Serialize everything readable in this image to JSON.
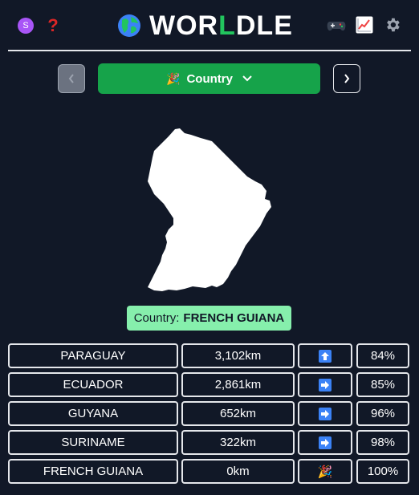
{
  "header": {
    "support_letter": "S",
    "help_symbol": "?",
    "title_prefix": "WOR",
    "title_highlight": "L",
    "title_suffix": "DLE",
    "icons": [
      "support-icon",
      "help-icon",
      "globe-icon",
      "games-icon",
      "stats-icon",
      "gear-icon"
    ]
  },
  "mode": {
    "label": "Country",
    "emoji": "🎉"
  },
  "answer": {
    "prefix": "Country:",
    "name": "FRENCH GUIANA"
  },
  "guesses": [
    {
      "name": "PARAGUAY",
      "distance": "3,102km",
      "direction": "up",
      "percent": "84%"
    },
    {
      "name": "ECUADOR",
      "distance": "2,861km",
      "direction": "right",
      "percent": "85%"
    },
    {
      "name": "GUYANA",
      "distance": "652km",
      "direction": "right",
      "percent": "96%"
    },
    {
      "name": "SURINAME",
      "distance": "322km",
      "direction": "right",
      "percent": "98%"
    },
    {
      "name": "FRENCH GUIANA",
      "distance": "0km",
      "direction": "win",
      "percent": "100%"
    }
  ],
  "colors": {
    "background": "#111827",
    "accent_green": "#16a34a",
    "answer_green": "#86efac",
    "arrow_blue": "#3b82f6"
  }
}
